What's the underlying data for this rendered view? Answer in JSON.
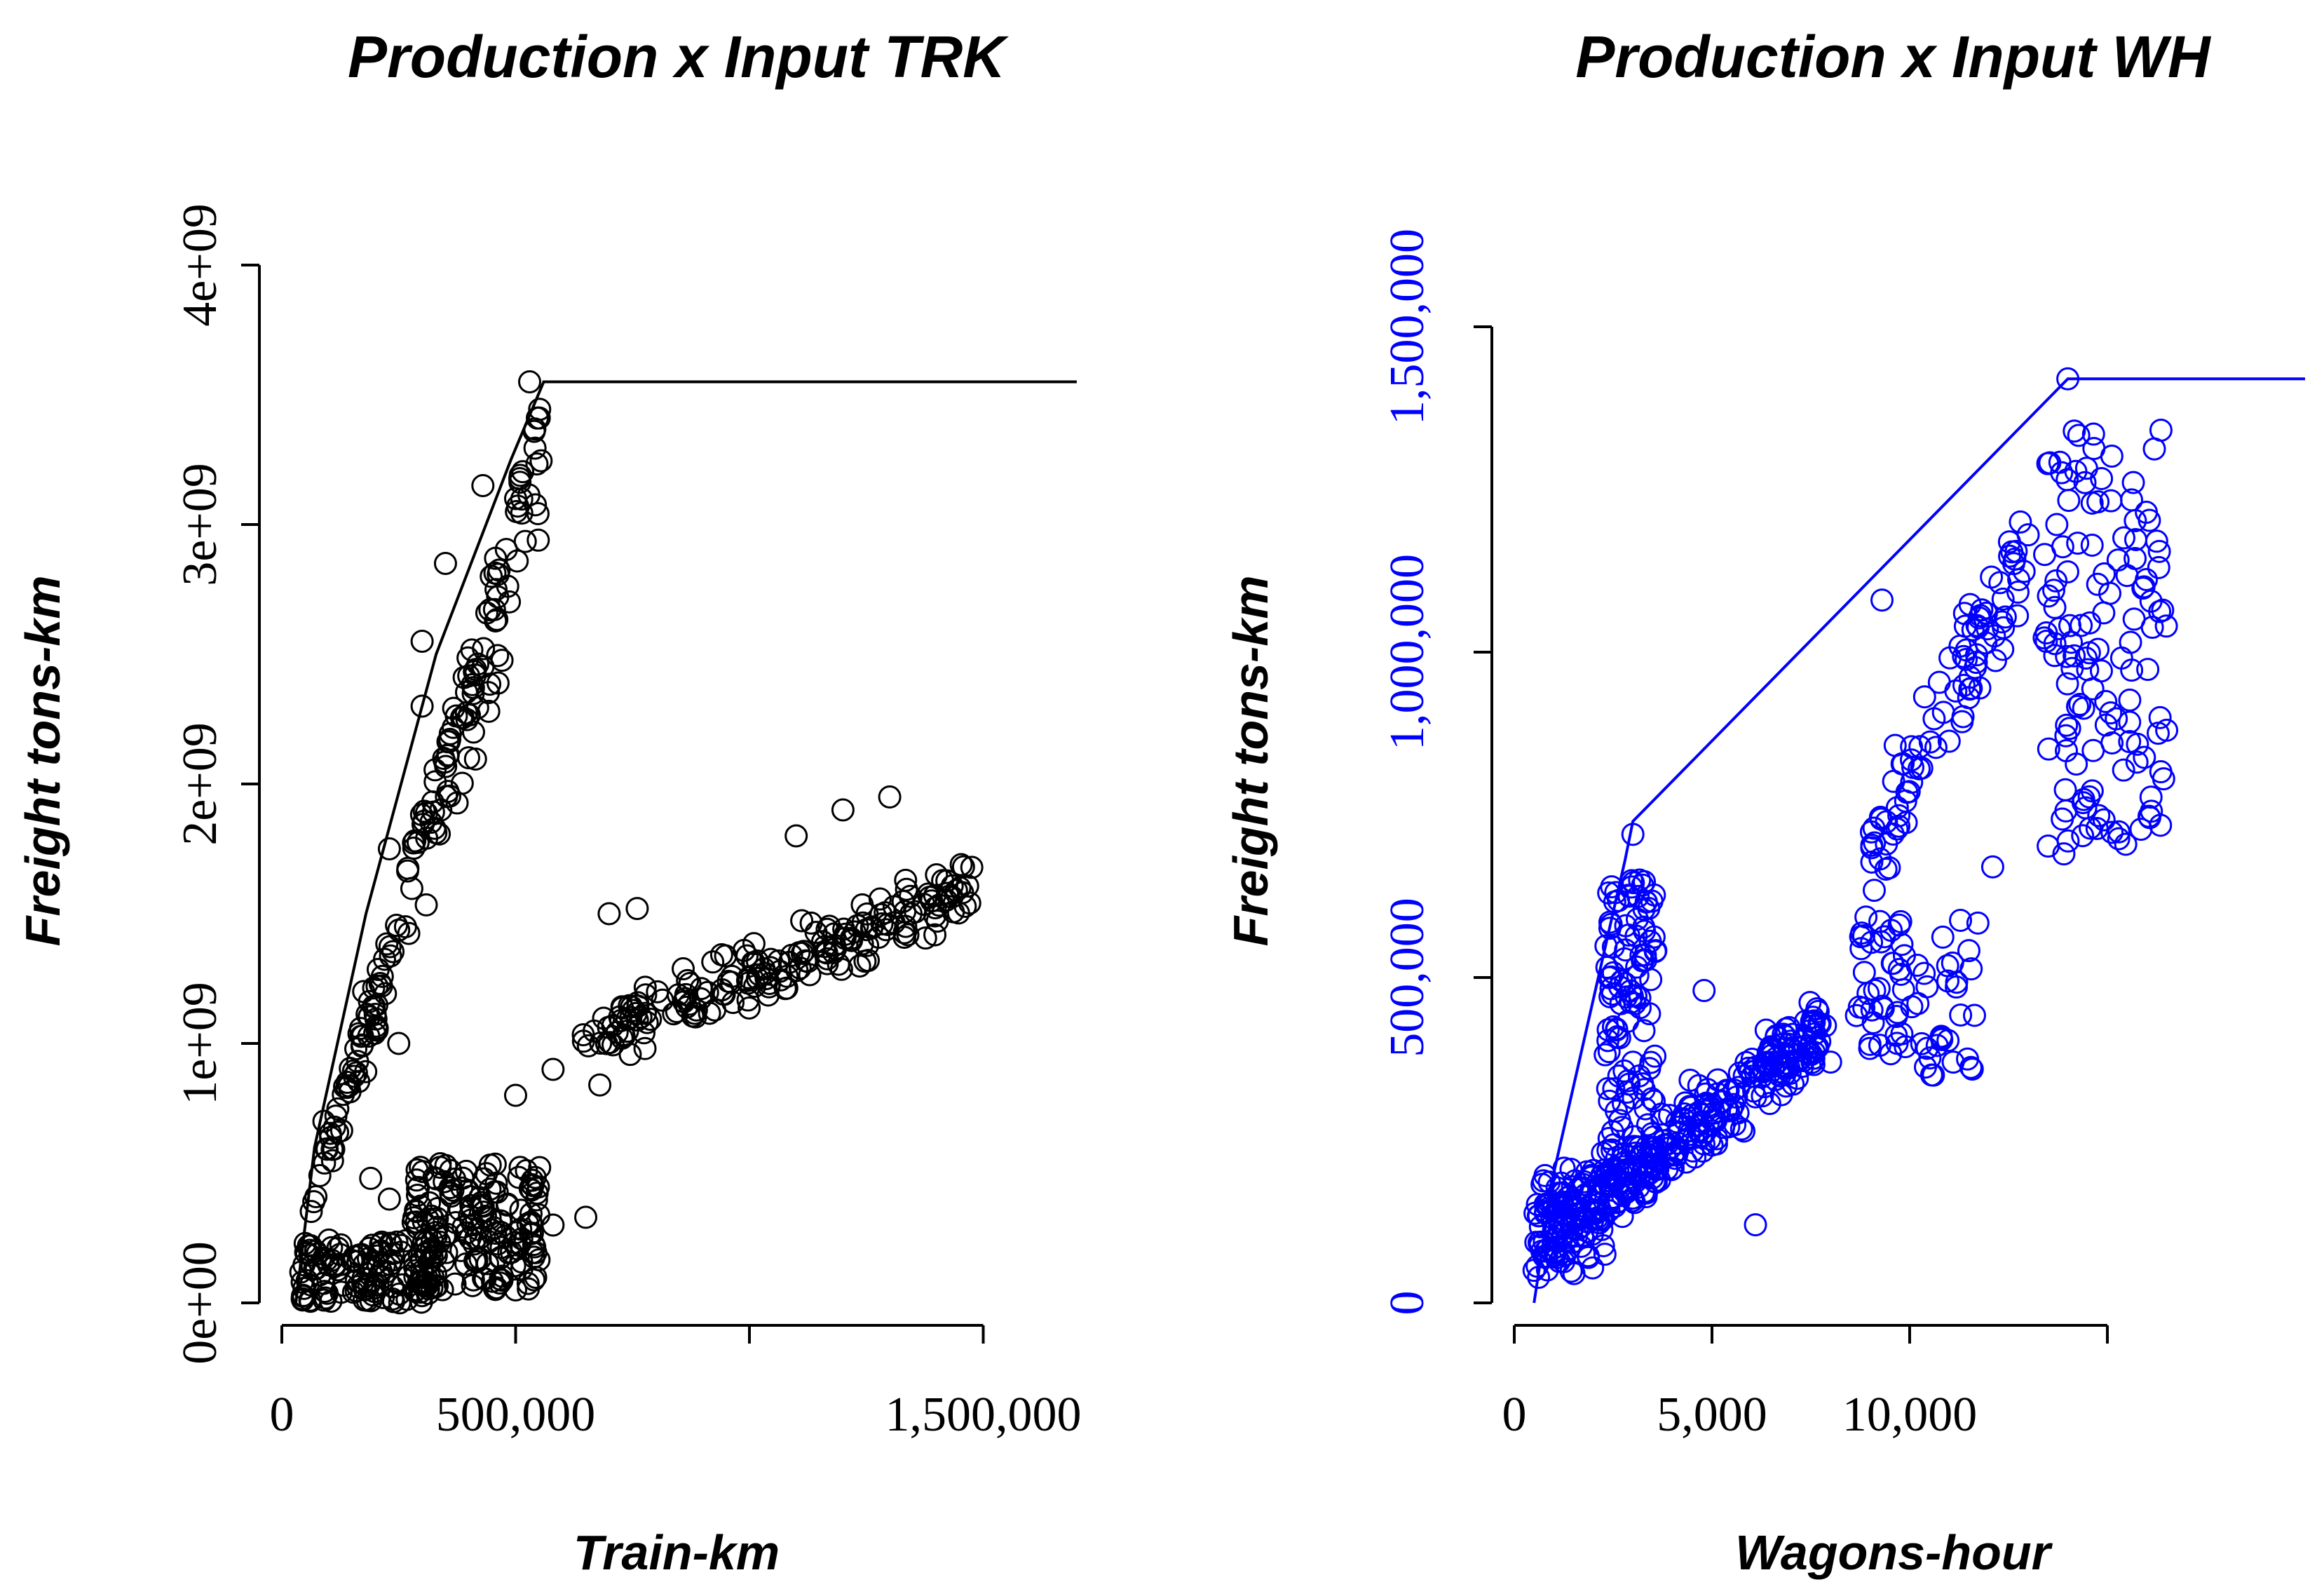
{
  "chart_data": [
    {
      "type": "scatter",
      "title": "Production x Input TRK",
      "xlabel": "Train-km",
      "ylabel": "Freight tons-km",
      "color": "#000000",
      "xlim": [
        0,
        1700000
      ],
      "ylim": [
        0,
        4000000000
      ],
      "x_ticks": [
        0,
        500000,
        1000000,
        1500000
      ],
      "x_tick_labels": [
        "0",
        "500,000",
        "",
        "1,500,000"
      ],
      "y_ticks": [
        0,
        1000000000,
        2000000000,
        3000000000,
        4000000000
      ],
      "y_tick_labels": [
        "0e+00",
        "1e+09",
        "2e+09",
        "3e+09",
        "4e+09"
      ],
      "frontier": {
        "x": [
          30000,
          70000,
          180000,
          330000,
          490000,
          560000,
          1700000
        ],
        "y": [
          0,
          600000000,
          1500000000,
          2500000000,
          3250000000,
          3550000000,
          3550000000
        ]
      },
      "clusters": [
        {
          "desc": "steep branch along frontier",
          "x_range": [
            60000,
            560000
          ],
          "slope_per_x": 6300,
          "spread": 0.12,
          "n": 170
        },
        {
          "desc": "low dense band",
          "x_range": [
            40000,
            330000
          ],
          "y_range": [
            0,
            250000000
          ],
          "n": 130
        },
        {
          "desc": "middle cluster",
          "x_range": [
            280000,
            560000
          ],
          "y_range": [
            50000000,
            550000000
          ],
          "n": 170
        },
        {
          "desc": "diagonal cluster",
          "x_range": [
            630000,
            1480000
          ],
          "y_center_line": [
            [
              630000,
              1000000000
            ],
            [
              1480000,
              1600000000
            ]
          ],
          "spread": 170000000,
          "n": 190
        }
      ],
      "points": [
        {
          "x": 60000,
          "y": 10000000
        },
        {
          "x": 90000,
          "y": 700000000
        },
        {
          "x": 140000,
          "y": 850000000
        },
        {
          "x": 175000,
          "y": 1200000000
        },
        {
          "x": 230000,
          "y": 1750000000
        },
        {
          "x": 300000,
          "y": 2550000000
        },
        {
          "x": 350000,
          "y": 2850000000
        },
        {
          "x": 430000,
          "y": 3150000000
        },
        {
          "x": 530000,
          "y": 3550000000
        },
        {
          "x": 500000,
          "y": 3100000000
        },
        {
          "x": 410000,
          "y": 2200000000
        },
        {
          "x": 340000,
          "y": 1900000000
        },
        {
          "x": 300000,
          "y": 2300000000
        },
        {
          "x": 250000,
          "y": 1000000000
        },
        {
          "x": 190000,
          "y": 480000000
        },
        {
          "x": 230000,
          "y": 400000000
        },
        {
          "x": 500000,
          "y": 800000000
        },
        {
          "x": 580000,
          "y": 900000000
        },
        {
          "x": 700000,
          "y": 1500000000
        },
        {
          "x": 760000,
          "y": 1520000000
        },
        {
          "x": 1100000,
          "y": 1800000000
        },
        {
          "x": 1200000,
          "y": 1900000000
        },
        {
          "x": 1300000,
          "y": 1950000000
        },
        {
          "x": 1400000,
          "y": 1650000000
        },
        {
          "x": 1450000,
          "y": 1600000000
        },
        {
          "x": 1180000,
          "y": 1350000000
        },
        {
          "x": 680000,
          "y": 840000000
        },
        {
          "x": 650000,
          "y": 330000000
        },
        {
          "x": 580000,
          "y": 300000000
        },
        {
          "x": 500000,
          "y": 50000000
        }
      ]
    },
    {
      "type": "scatter",
      "title": "Production x Input WH",
      "xlabel": "Wagons-hour",
      "ylabel": "Freight tons-km",
      "color": "#0000ff",
      "xlim": [
        0,
        20000
      ],
      "ylim": [
        0,
        1500000
      ],
      "x_ticks": [
        0,
        5000,
        10000,
        15000
      ],
      "x_tick_labels": [
        "0",
        "5,000",
        "10,000",
        ""
      ],
      "y_ticks": [
        0,
        500000,
        1000000,
        1500000
      ],
      "y_tick_labels": [
        "0",
        "500,000",
        "1,000,000",
        "1,500,000"
      ],
      "frontier": {
        "x": [
          500,
          1000,
          2800,
          3000,
          14000,
          20000
        ],
        "y": [
          0,
          200000,
          680000,
          740000,
          1420000,
          1420000
        ]
      },
      "clusters": [
        {
          "desc": "tall column",
          "x_range": [
            2300,
            3600
          ],
          "y_range": [
            150000,
            650000
          ],
          "n": 130
        },
        {
          "desc": "main diagonal",
          "x_range": [
            600,
            7900
          ],
          "y_center_line": [
            [
              600,
              90000
            ],
            [
              7900,
              420000
            ]
          ],
          "spread": 90000,
          "n": 320
        },
        {
          "desc": "low start",
          "x_range": [
            500,
            2300
          ],
          "y_range": [
            40000,
            210000
          ],
          "n": 60
        },
        {
          "desc": "mid group",
          "x_range": [
            8600,
            11800
          ],
          "y_range": [
            350000,
            600000
          ],
          "n": 70
        },
        {
          "desc": "upper band",
          "x_range": [
            9000,
            13000
          ],
          "y_center_line": [
            [
              9000,
              700000
            ],
            [
              13000,
              1150000
            ]
          ],
          "spread": 120000,
          "n": 90
        },
        {
          "desc": "right column",
          "x_range": [
            13400,
            16500
          ],
          "y_range": [
            700000,
            1350000
          ],
          "n": 130
        }
      ],
      "points": [
        {
          "x": 500,
          "y": 50000
        },
        {
          "x": 3000,
          "y": 720000
        },
        {
          "x": 14000,
          "y": 1420000
        },
        {
          "x": 9300,
          "y": 1080000
        },
        {
          "x": 12800,
          "y": 1200000
        },
        {
          "x": 16500,
          "y": 880000
        },
        {
          "x": 16300,
          "y": 1130000
        },
        {
          "x": 13900,
          "y": 690000
        },
        {
          "x": 11100,
          "y": 370000
        },
        {
          "x": 10600,
          "y": 350000
        },
        {
          "x": 6100,
          "y": 120000
        },
        {
          "x": 4800,
          "y": 480000
        },
        {
          "x": 8000,
          "y": 370000
        },
        {
          "x": 12100,
          "y": 670000
        }
      ]
    }
  ]
}
